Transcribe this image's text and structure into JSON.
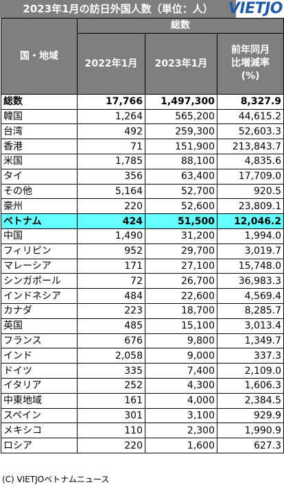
{
  "title": "2023年1月の訪日外国人数（単位：人）",
  "logo": "VIETJO",
  "headers": {
    "region": "国・地域",
    "total_group": "総数",
    "col_2022": "2022年1月",
    "col_2023": "2023年1月",
    "col_change": "前年同月比増減率(%)"
  },
  "rows": [
    {
      "name": "総数",
      "v2022": "17,766",
      "v2023": "1,497,300",
      "change": "8,327.9",
      "type": "total"
    },
    {
      "name": "韓国",
      "v2022": "1,264",
      "v2023": "565,200",
      "change": "44,615.2"
    },
    {
      "name": "台湾",
      "v2022": "492",
      "v2023": "259,300",
      "change": "52,603.3"
    },
    {
      "name": "香港",
      "v2022": "71",
      "v2023": "151,900",
      "change": "213,843.7"
    },
    {
      "name": "米国",
      "v2022": "1,785",
      "v2023": "88,100",
      "change": "4,835.6"
    },
    {
      "name": "タイ",
      "v2022": "356",
      "v2023": "63,400",
      "change": "17,709.0"
    },
    {
      "name": "その他",
      "v2022": "5,164",
      "v2023": "52,700",
      "change": "920.5"
    },
    {
      "name": "豪州",
      "v2022": "220",
      "v2023": "52,600",
      "change": "23,809.1"
    },
    {
      "name": "ベトナム",
      "v2022": "424",
      "v2023": "51,500",
      "change": "12,046.2",
      "type": "vn"
    },
    {
      "name": "中国",
      "v2022": "1,490",
      "v2023": "31,200",
      "change": "1,994.0"
    },
    {
      "name": "フィリピン",
      "v2022": "952",
      "v2023": "29,700",
      "change": "3,019.7"
    },
    {
      "name": "マレーシア",
      "v2022": "171",
      "v2023": "27,100",
      "change": "15,748.0"
    },
    {
      "name": "シンガポール",
      "v2022": "72",
      "v2023": "26,700",
      "change": "36,983.3"
    },
    {
      "name": "インドネシア",
      "v2022": "484",
      "v2023": "22,600",
      "change": "4,569.4"
    },
    {
      "name": "カナダ",
      "v2022": "223",
      "v2023": "18,700",
      "change": "8,285.7"
    },
    {
      "name": "英国",
      "v2022": "485",
      "v2023": "15,100",
      "change": "3,013.4"
    },
    {
      "name": "フランス",
      "v2022": "676",
      "v2023": "9,800",
      "change": "1,349.7"
    },
    {
      "name": "インド",
      "v2022": "2,058",
      "v2023": "9,000",
      "change": "337.3"
    },
    {
      "name": "ドイツ",
      "v2022": "335",
      "v2023": "7,400",
      "change": "2,109.0"
    },
    {
      "name": "イタリア",
      "v2022": "252",
      "v2023": "4,300",
      "change": "1,606.3"
    },
    {
      "name": "中東地域",
      "v2022": "161",
      "v2023": "4,000",
      "change": "2,384.5"
    },
    {
      "name": "スペイン",
      "v2022": "301",
      "v2023": "3,100",
      "change": "929.9"
    },
    {
      "name": "メキシコ",
      "v2022": "110",
      "v2023": "2,300",
      "change": "1,990.9"
    },
    {
      "name": "ロシア",
      "v2022": "220",
      "v2023": "1,600",
      "change": "627.3"
    }
  ],
  "footer": "(C) VIETJOベトナムニュース",
  "colors": {
    "header_gray": "#7f7f7f",
    "highlight_cyan": "#66ffff",
    "logo_blue": "#1f5aa6"
  }
}
